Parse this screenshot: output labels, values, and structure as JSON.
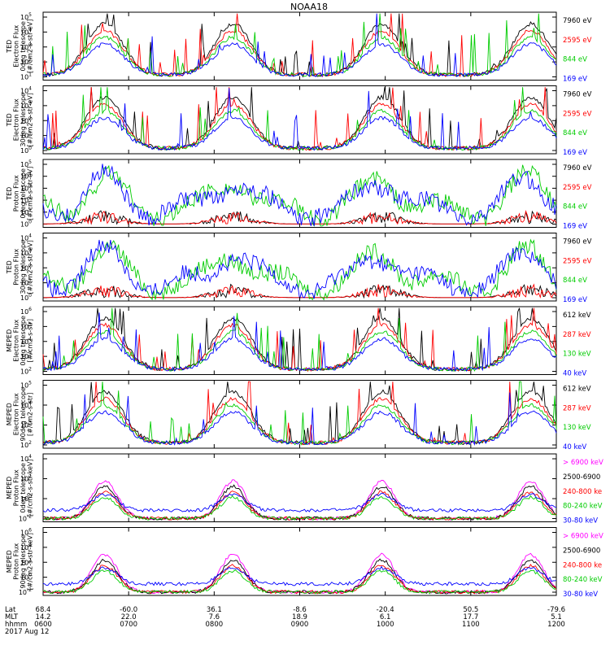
{
  "title": "NOAA18",
  "chart_data": [
    {
      "type": "line",
      "panel_label": "TED\nElectron Flux\n0deg telescope\n[#/cm2-s-str-eV]",
      "y_log_range": [
        1,
        5
      ],
      "y_tick_labels": [
        "10^1",
        "10^2",
        "10^3",
        "10^4",
        "10^5"
      ],
      "series": [
        {
          "name": "7960 eV",
          "color": "#000000"
        },
        {
          "name": "2595 eV",
          "color": "#ff0000"
        },
        {
          "name": "844 eV",
          "color": "#00cc00"
        },
        {
          "name": "169 eV",
          "color": "#0000ff"
        }
      ]
    },
    {
      "type": "line",
      "panel_label": "TED\nElectron Flux\n30deg telescope\n[#/cm2-s-str-eV]",
      "y_log_range": [
        0,
        5
      ],
      "y_tick_labels": [
        "10^0",
        "10^1",
        "10^2",
        "10^3",
        "10^4"
      ],
      "series": [
        {
          "name": "7960 eV",
          "color": "#000000"
        },
        {
          "name": "2595 eV",
          "color": "#ff0000"
        },
        {
          "name": "844 eV",
          "color": "#00cc00"
        },
        {
          "name": "169 eV",
          "color": "#0000ff"
        }
      ]
    },
    {
      "type": "line",
      "panel_label": "TED\nProton Flux\n0deg telescope\n[#/cm2-s-str-eV]",
      "y_log_range": [
        0,
        5
      ],
      "y_tick_labels": [
        "10^0",
        "10^1",
        "10^2",
        "10^3",
        "10^4",
        "10^5"
      ],
      "series": [
        {
          "name": "7960 eV",
          "color": "#000000"
        },
        {
          "name": "2595 eV",
          "color": "#ff0000"
        },
        {
          "name": "844 eV",
          "color": "#00cc00"
        },
        {
          "name": "169 eV",
          "color": "#0000ff"
        }
      ]
    },
    {
      "type": "line",
      "panel_label": "TED\nProton Flux\n30deg telescope\n[#/cm2-s-str-eV]",
      "y_log_range": [
        0,
        5
      ],
      "y_tick_labels": [
        "10^0",
        "10^1",
        "10^2",
        "10^3",
        "10^4"
      ],
      "series": [
        {
          "name": "7960 eV",
          "color": "#000000"
        },
        {
          "name": "2595 eV",
          "color": "#ff0000"
        },
        {
          "name": "844 eV",
          "color": "#00cc00"
        },
        {
          "name": "169 eV",
          "color": "#0000ff"
        }
      ]
    },
    {
      "type": "line",
      "panel_label": "MEPED\nElectron Flux\n0deg telescope\n[#/cm2-s-str]",
      "y_log_range": [
        2,
        7
      ],
      "y_tick_labels": [
        "10^2",
        "10^3",
        "10^4",
        "10^5",
        "10^6"
      ],
      "series": [
        {
          "name": "612 keV",
          "color": "#000000"
        },
        {
          "name": "287 keV",
          "color": "#ff0000"
        },
        {
          "name": "130 keV",
          "color": "#00cc00"
        },
        {
          "name": "40 keV",
          "color": "#0000ff"
        }
      ]
    },
    {
      "type": "line",
      "panel_label": "MEPED\nElectron Flux\n90deg telescope\n[#/cm2-s-str]",
      "y_log_range": [
        2,
        6
      ],
      "y_tick_labels": [
        "10^2",
        "10^3",
        "10^4",
        "10^5"
      ],
      "series": [
        {
          "name": "612 keV",
          "color": "#000000"
        },
        {
          "name": "287 keV",
          "color": "#ff0000"
        },
        {
          "name": "130 keV",
          "color": "#00cc00"
        },
        {
          "name": "40 keV",
          "color": "#0000ff"
        }
      ]
    },
    {
      "type": "line",
      "panel_label": "MEPED\nProton Flux\n0deg telescope\n[#/cm2-s-str-keV]",
      "y_log_range": [
        -2,
        6
      ],
      "y_tick_labels": [
        "10^-2",
        "10^0",
        "10^2",
        "10^4"
      ],
      "series": [
        {
          "name": "> 6900 keV",
          "color": "#ff00ff"
        },
        {
          "name": "2500-6900",
          "color": "#000000"
        },
        {
          "name": "240-800 ke",
          "color": "#ff0000"
        },
        {
          "name": "80-240 keV",
          "color": "#00cc00"
        },
        {
          "name": "30-80 keV",
          "color": "#0000ff"
        }
      ]
    },
    {
      "type": "line",
      "panel_label": "MEPED\nProton Flux\n90deg telescope\n[#/cm2-s-str-keV]",
      "y_log_range": [
        -2,
        6
      ],
      "y_tick_labels": [
        "10^-2",
        "10^0",
        "10^2",
        "10^4",
        "10^6"
      ],
      "series": [
        {
          "name": "> 6900 keV",
          "color": "#ff00ff"
        },
        {
          "name": "2500-6900",
          "color": "#000000"
        },
        {
          "name": "240-800 ke",
          "color": "#ff0000"
        },
        {
          "name": "80-240 keV",
          "color": "#00cc00"
        },
        {
          "name": "30-80 keV",
          "color": "#0000ff"
        }
      ]
    }
  ],
  "x_axis": {
    "row_labels": [
      "Lat",
      "MLT",
      "hhmm"
    ],
    "date": "2017 Aug 12",
    "time_range_hhmm": [
      "0600",
      "1200"
    ],
    "ticks": [
      {
        "lat": "68.4",
        "mlt": "14.2",
        "hhmm": "0600"
      },
      {
        "lat": "-60.0",
        "mlt": "22.0",
        "hhmm": "0700"
      },
      {
        "lat": "36.1",
        "mlt": "7.6",
        "hhmm": "0800"
      },
      {
        "lat": "-8.6",
        "mlt": "18.9",
        "hhmm": "0900"
      },
      {
        "lat": "-20.4",
        "mlt": "6.1",
        "hhmm": "1000"
      },
      {
        "lat": "50.5",
        "mlt": "17.7",
        "hhmm": "1100"
      },
      {
        "lat": "-79.6",
        "mlt": "5.1",
        "hhmm": "1200"
      }
    ]
  }
}
